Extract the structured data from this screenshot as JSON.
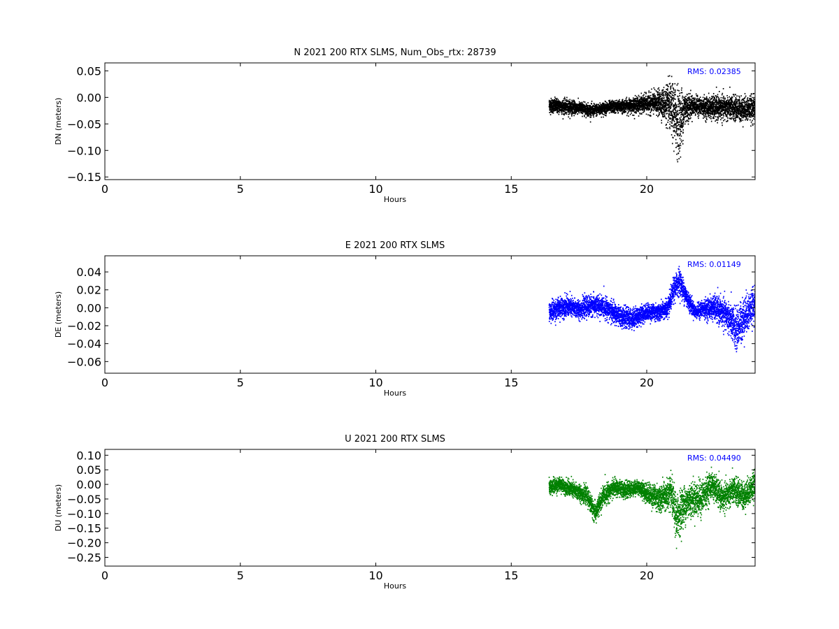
{
  "chart_data": [
    {
      "type": "scatter",
      "title": "N 2021 200 RTX  SLMS, Num_Obs_rtx: 28739",
      "xlabel": "Hours",
      "ylabel": "DN (meters)",
      "xlim": [
        0,
        24
      ],
      "ylim": [
        -0.155,
        0.065
      ],
      "xticks": [
        "0",
        "5",
        "10",
        "15",
        "20"
      ],
      "yticks": [
        "0.05",
        "0.00",
        "−0.05",
        "−0.10",
        "−0.15"
      ],
      "ytick_values": [
        0.05,
        0.0,
        -0.05,
        -0.1,
        -0.15
      ],
      "annotation": "RMS:  0.02385",
      "color": "#000000",
      "x_range": [
        16.4,
        24.0
      ],
      "series": [
        {
          "trend_x": [
            16.4,
            17.0,
            17.5,
            18.0,
            18.3,
            18.7,
            19.0,
            19.5,
            20.0,
            20.5,
            20.8,
            21.0,
            21.2,
            21.4,
            21.7,
            22.0,
            22.5,
            23.0,
            23.5,
            24.0
          ],
          "trend_y": [
            -0.015,
            -0.018,
            -0.02,
            -0.025,
            -0.022,
            -0.018,
            -0.017,
            -0.015,
            -0.012,
            -0.01,
            -0.015,
            -0.03,
            -0.05,
            -0.02,
            -0.015,
            -0.018,
            -0.02,
            -0.02,
            -0.022,
            -0.02
          ],
          "spread": [
            0.012,
            0.012,
            0.01,
            0.01,
            0.01,
            0.01,
            0.01,
            0.012,
            0.015,
            0.02,
            0.035,
            0.05,
            0.06,
            0.03,
            0.015,
            0.015,
            0.02,
            0.02,
            0.02,
            0.02
          ]
        }
      ]
    },
    {
      "type": "scatter",
      "title": "E 2021 200 RTX  SLMS",
      "xlabel": "Hours",
      "ylabel": "DE (meters)",
      "xlim": [
        0,
        24
      ],
      "ylim": [
        -0.073,
        0.058
      ],
      "xticks": [
        "0",
        "5",
        "10",
        "15",
        "20"
      ],
      "yticks": [
        "0.04",
        "0.02",
        "0.00",
        "−0.02",
        "−0.04",
        "−0.06"
      ],
      "ytick_values": [
        0.04,
        0.02,
        0.0,
        -0.02,
        -0.04,
        -0.06
      ],
      "annotation": "RMS:  0.01149",
      "color": "#0000ff",
      "x_range": [
        16.4,
        24.0
      ],
      "series": [
        {
          "trend_x": [
            16.4,
            17.0,
            17.5,
            18.0,
            18.5,
            19.0,
            19.5,
            20.0,
            20.5,
            20.8,
            21.0,
            21.2,
            21.5,
            21.8,
            22.0,
            22.5,
            23.0,
            23.3,
            23.6,
            24.0
          ],
          "trend_y": [
            -0.005,
            0.002,
            -0.002,
            0.003,
            0.0,
            -0.01,
            -0.012,
            -0.005,
            -0.005,
            0.0,
            0.02,
            0.03,
            0.01,
            -0.005,
            -0.002,
            0.0,
            -0.01,
            -0.025,
            -0.01,
            0.005
          ],
          "spread": [
            0.01,
            0.01,
            0.009,
            0.01,
            0.01,
            0.01,
            0.01,
            0.008,
            0.008,
            0.01,
            0.012,
            0.013,
            0.01,
            0.006,
            0.008,
            0.012,
            0.015,
            0.02,
            0.02,
            0.015
          ]
        }
      ]
    },
    {
      "type": "scatter",
      "title": "U 2021 200 RTX  SLMS",
      "xlabel": "Hours",
      "ylabel": "DU (meters)",
      "xlim": [
        0,
        24
      ],
      "ylim": [
        -0.28,
        0.12
      ],
      "xticks": [
        "0",
        "5",
        "10",
        "15",
        "20"
      ],
      "yticks": [
        "0.10",
        "0.05",
        "0.00",
        "−0.05",
        "−0.10",
        "−0.15",
        "−0.20",
        "−0.25"
      ],
      "ytick_values": [
        0.1,
        0.05,
        0.0,
        -0.05,
        -0.1,
        -0.15,
        -0.2,
        -0.25
      ],
      "annotation": "RMS:  0.04490",
      "color": "#008000",
      "x_range": [
        16.4,
        24.0
      ],
      "series": [
        {
          "trend_x": [
            16.4,
            16.8,
            17.3,
            17.8,
            18.1,
            18.4,
            18.8,
            19.2,
            19.7,
            20.0,
            20.5,
            20.9,
            21.1,
            21.3,
            21.6,
            22.0,
            22.4,
            22.8,
            23.2,
            23.6,
            24.0
          ],
          "trend_y": [
            -0.01,
            0.0,
            -0.02,
            -0.04,
            -0.1,
            -0.04,
            -0.01,
            -0.02,
            -0.01,
            -0.03,
            -0.05,
            -0.03,
            -0.12,
            -0.08,
            -0.05,
            -0.05,
            0.0,
            -0.05,
            -0.02,
            -0.04,
            0.0
          ],
          "spread": [
            0.025,
            0.02,
            0.025,
            0.025,
            0.03,
            0.03,
            0.025,
            0.025,
            0.02,
            0.03,
            0.04,
            0.05,
            0.07,
            0.06,
            0.05,
            0.05,
            0.04,
            0.04,
            0.04,
            0.04,
            0.04
          ]
        }
      ]
    }
  ]
}
